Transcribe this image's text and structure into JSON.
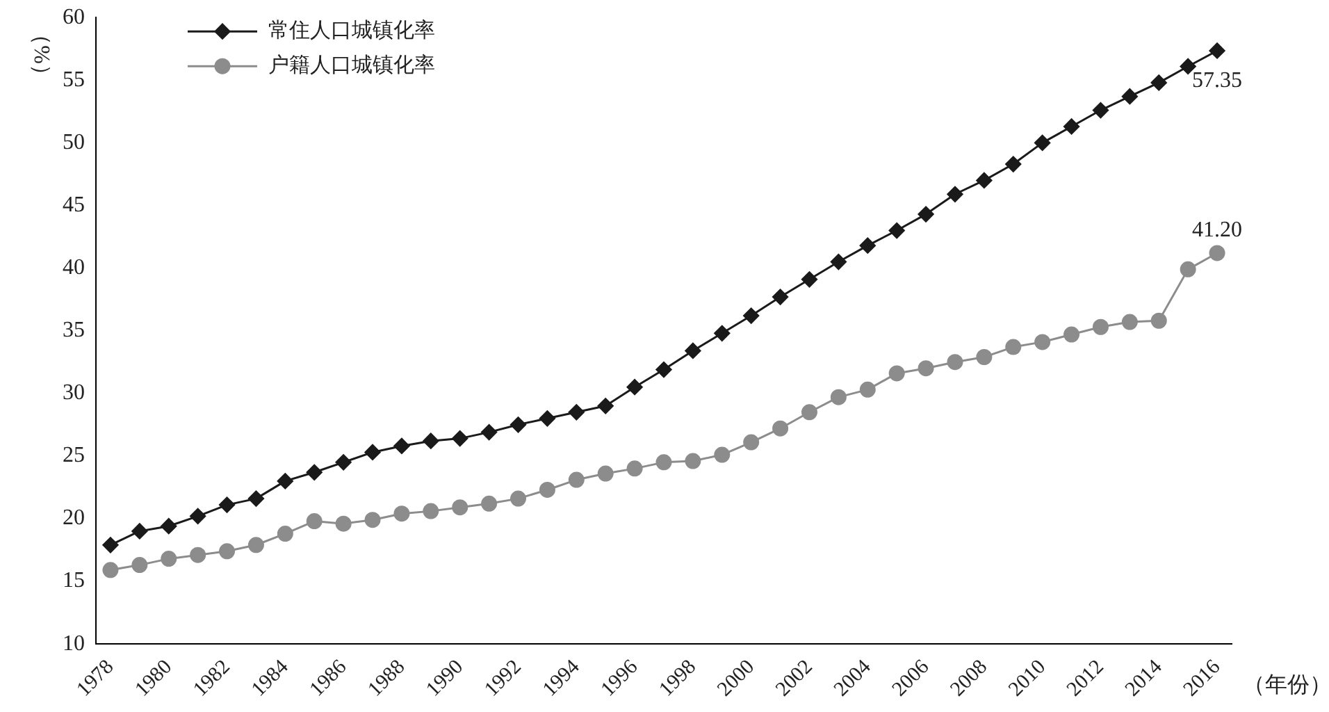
{
  "chart_data": {
    "type": "line",
    "xlabel": "（年份）",
    "ylabel": "（%）",
    "categories": [
      "1978",
      null,
      "1980",
      null,
      "1982",
      null,
      "1984",
      null,
      "1986",
      null,
      "1988",
      null,
      "1990",
      null,
      "1992",
      null,
      "1994",
      null,
      "1996",
      null,
      "1998",
      null,
      "2000",
      null,
      "2002",
      null,
      "2004",
      null,
      "2006",
      null,
      "2008",
      null,
      "2010",
      null,
      "2012",
      null,
      "2014",
      null,
      "2016"
    ],
    "series": [
      {
        "name": "常住人口城镇化率",
        "color": "#1a1a1a",
        "marker": "diamond",
        "values": [
          17.9,
          19.0,
          19.4,
          20.2,
          21.1,
          21.6,
          23.0,
          23.7,
          24.5,
          25.3,
          25.8,
          26.2,
          26.4,
          26.9,
          27.5,
          28.0,
          28.5,
          29.0,
          30.5,
          31.9,
          33.4,
          34.8,
          36.2,
          37.7,
          39.1,
          40.5,
          41.8,
          43.0,
          44.3,
          45.9,
          47.0,
          48.3,
          50.0,
          51.3,
          52.6,
          53.7,
          54.8,
          56.1,
          57.35
        ]
      },
      {
        "name": "户籍人口城镇化率",
        "color": "#8c8c8c",
        "marker": "circle",
        "values": [
          15.9,
          16.3,
          16.8,
          17.1,
          17.4,
          17.9,
          18.8,
          19.8,
          19.6,
          19.9,
          20.4,
          20.6,
          20.9,
          21.2,
          21.6,
          22.3,
          23.1,
          23.6,
          24.0,
          24.5,
          24.6,
          25.1,
          26.1,
          27.2,
          28.5,
          29.7,
          30.3,
          31.6,
          32.0,
          32.5,
          32.9,
          33.7,
          34.1,
          34.7,
          35.3,
          35.7,
          35.8,
          39.9,
          41.2
        ]
      }
    ],
    "ylim": [
      10,
      60
    ],
    "yticks": [
      10,
      15,
      20,
      25,
      30,
      35,
      40,
      45,
      50,
      55,
      60
    ],
    "grid": false,
    "legend": "top left",
    "line_style": "solid",
    "annotations": [
      {
        "text": "57.35",
        "x": "2016",
        "y": 57.35
      },
      {
        "text": "41.20",
        "x": "2016",
        "y": 41.2
      }
    ]
  }
}
